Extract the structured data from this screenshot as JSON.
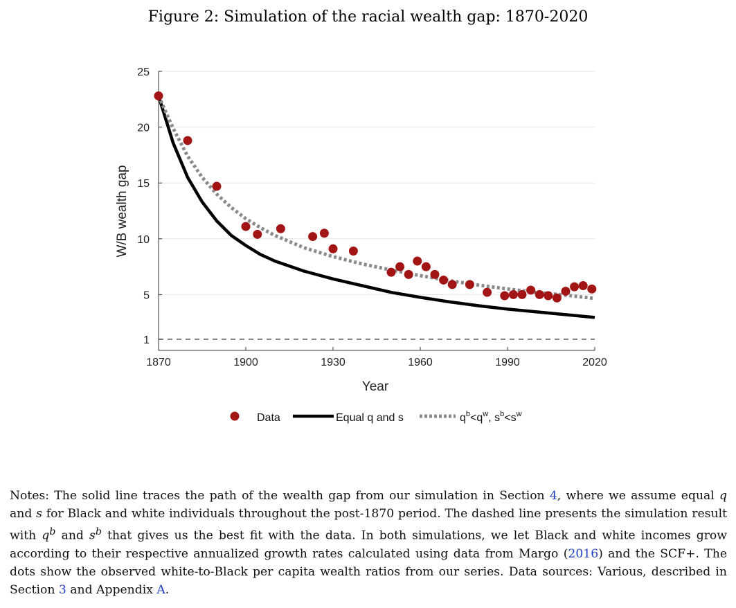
{
  "figure": {
    "caption": "Figure 2: Simulation of the racial wealth gap: 1870-2020"
  },
  "chart_data": {
    "type": "line",
    "title": "",
    "xlabel": "Year",
    "ylabel": "W/B wealth gap",
    "xlim": [
      1870,
      2020
    ],
    "ylim": [
      0,
      25
    ],
    "xticks": [
      1870,
      1900,
      1930,
      1960,
      1990,
      2020
    ],
    "yticks": [
      1,
      5,
      10,
      15,
      20,
      25
    ],
    "grid": true,
    "legend_position": "bottom",
    "reference_line": {
      "y": 1,
      "style": "dashed"
    },
    "series": [
      {
        "name": "Data",
        "kind": "scatter",
        "color": "#a31515",
        "x": [
          1870,
          1880,
          1890,
          1900,
          1904,
          1912,
          1923,
          1927,
          1930,
          1937,
          1950,
          1953,
          1956,
          1959,
          1962,
          1965,
          1968,
          1971,
          1977,
          1983,
          1989,
          1992,
          1995,
          1998,
          2001,
          2004,
          2007,
          2010,
          2013,
          2016,
          2019
        ],
        "y": [
          22.8,
          18.8,
          14.7,
          11.1,
          10.4,
          10.9,
          10.2,
          10.5,
          9.1,
          8.9,
          7.0,
          7.5,
          6.8,
          8.0,
          7.5,
          6.8,
          6.3,
          5.9,
          5.9,
          5.2,
          4.9,
          5.0,
          5.0,
          5.4,
          5.0,
          4.9,
          4.7,
          5.3,
          5.7,
          5.8,
          5.5
        ]
      },
      {
        "name": "Equal q and s",
        "kind": "line",
        "style": "solid",
        "color": "#000000",
        "x": [
          1870,
          1875,
          1880,
          1885,
          1890,
          1895,
          1900,
          1905,
          1910,
          1920,
          1930,
          1940,
          1950,
          1960,
          1970,
          1980,
          1990,
          2000,
          2010,
          2020
        ],
        "y": [
          22.8,
          18.6,
          15.5,
          13.3,
          11.6,
          10.3,
          9.4,
          8.6,
          8.0,
          7.1,
          6.4,
          5.8,
          5.2,
          4.75,
          4.35,
          4.0,
          3.7,
          3.45,
          3.2,
          2.95
        ]
      },
      {
        "name": "q^b<q^w, s^b<s^w",
        "kind": "line",
        "style": "dotted",
        "color": "#8a8a8a",
        "x": [
          1870,
          1875,
          1880,
          1885,
          1890,
          1895,
          1900,
          1905,
          1910,
          1920,
          1930,
          1940,
          1950,
          1960,
          1970,
          1980,
          1990,
          2000,
          2010,
          2020
        ],
        "y": [
          22.8,
          19.9,
          17.4,
          15.5,
          14.0,
          12.8,
          11.8,
          11.0,
          10.3,
          9.2,
          8.4,
          7.75,
          7.2,
          6.7,
          6.25,
          5.85,
          5.5,
          5.2,
          4.95,
          4.65
        ]
      }
    ]
  },
  "legend": {
    "data_label": "Data",
    "equal_label": "Equal q and s",
    "unequal_label_q": "q",
    "unequal_label_b": "b",
    "unequal_label_lt": "<q",
    "unequal_label_w": "w",
    "unequal_label_comma": ", s",
    "unequal_label_b2": "b",
    "unequal_label_lt2": "<s",
    "unequal_label_w2": "w"
  },
  "notes": {
    "p1": "Notes: The solid line traces the path of the wealth gap from our simulation in Section ",
    "ref_section4": "4",
    "p2": ", where we assume equal ",
    "q": "q",
    "p3": " and ",
    "s": "s",
    "p4": " for Black and white individuals throughout the post-1870 period. The dashed line presents the simulation result with ",
    "qb_base": "q",
    "qb_sup": "b",
    "p5": " and ",
    "sb_base": "s",
    "sb_sup": "b",
    "p6": " that gives us the best fit with the data. In both simulations, we let Black and white incomes grow according to their respective annualized growth rates calculated using data from Margo (",
    "ref_margo": "2016",
    "p7": ") and the SCF+. The dots show the observed white-to-Black per capita wealth ratios from our series. Data sources: Various, described in Section ",
    "ref_section3": "3",
    "p8": " and Appendix ",
    "ref_appendix": "A",
    "p9": "."
  }
}
